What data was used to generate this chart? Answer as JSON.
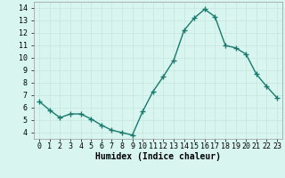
{
  "x": [
    0,
    1,
    2,
    3,
    4,
    5,
    6,
    7,
    8,
    9,
    10,
    11,
    12,
    13,
    14,
    15,
    16,
    17,
    18,
    19,
    20,
    21,
    22,
    23
  ],
  "y": [
    6.5,
    5.8,
    5.2,
    5.5,
    5.5,
    5.1,
    4.6,
    4.2,
    4.0,
    3.8,
    5.7,
    7.3,
    8.5,
    9.8,
    12.2,
    13.2,
    13.9,
    13.3,
    11.0,
    10.8,
    10.3,
    8.7,
    7.7,
    6.8
  ],
  "line_color": "#1a7a6e",
  "marker": "+",
  "marker_size": 4,
  "linewidth": 1.0,
  "bg_color": "#d8f5f0",
  "grid_color": "#c8e8e0",
  "xlabel": "Humidex (Indice chaleur)",
  "xlabel_fontsize": 7,
  "tick_fontsize": 6,
  "ylim": [
    3.5,
    14.5
  ],
  "xlim": [
    -0.5,
    23.5
  ],
  "yticks": [
    4,
    5,
    6,
    7,
    8,
    9,
    10,
    11,
    12,
    13,
    14
  ],
  "xtick_labels": [
    "0",
    "1",
    "2",
    "3",
    "4",
    "5",
    "6",
    "7",
    "8",
    "9",
    "10",
    "11",
    "12",
    "13",
    "14",
    "15",
    "16",
    "17",
    "18",
    "19",
    "20",
    "21",
    "22",
    "23"
  ]
}
